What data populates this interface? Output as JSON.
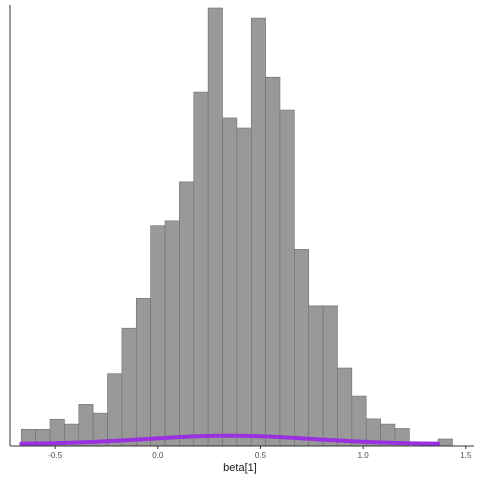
{
  "chart_data": {
    "type": "bar",
    "title": "",
    "xlabel": "beta[1]",
    "ylabel": "",
    "xlim": [
      -0.72,
      1.54
    ],
    "ylim": [
      0,
      100
    ],
    "x_ticks": [
      -0.5,
      0.0,
      0.5,
      1.0,
      1.5
    ],
    "x_tick_labels": [
      "-0.5",
      "0.0",
      "0.5",
      "1.0",
      "1.5"
    ],
    "bin_edges": [
      -0.665,
      -0.595,
      -0.525,
      -0.455,
      -0.385,
      -0.315,
      -0.245,
      -0.175,
      -0.105,
      -0.035,
      0.035,
      0.105,
      0.175,
      0.245,
      0.315,
      0.385,
      0.455,
      0.525,
      0.595,
      0.665,
      0.735,
      0.805,
      0.875,
      0.945,
      1.015,
      1.085,
      1.155,
      1.225,
      1.295,
      1.365,
      1.435
    ],
    "bin_counts": [
      3.8,
      3.8,
      6.1,
      5.0,
      9.5,
      7.5,
      16.5,
      26.9,
      33.7,
      50.3,
      51.4,
      60.3,
      80.8,
      100.0,
      74.9,
      72.6,
      97.7,
      84.2,
      76.7,
      44.9,
      32.0,
      32.0,
      17.8,
      11.4,
      6.2,
      5.0,
      4.0,
      0,
      0,
      1.6
    ],
    "grid": false,
    "density_overlay": {
      "color": "#9b30e0",
      "mean": 0.35,
      "sd": 0.4,
      "peak": 1.9
    },
    "colors": {
      "bar_fill": "#999999",
      "bar_stroke": "#6e6e6e",
      "axis": "#333333"
    }
  }
}
